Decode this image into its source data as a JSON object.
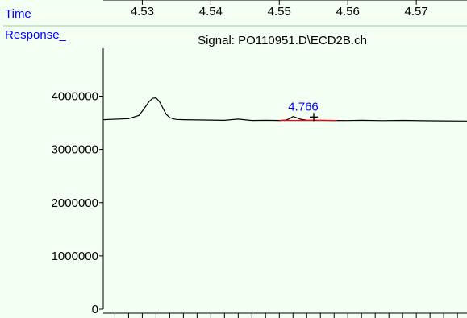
{
  "chart_data": {
    "type": "line",
    "title": "Signal: PO110951.D\\ECD2B.ch",
    "xlabel": "Time",
    "ylabel": "Response_",
    "xlim": [
      4.5243,
      4.5774
    ],
    "ylim": [
      0,
      4900000
    ],
    "x_ticks": [
      4.53,
      4.54,
      4.55,
      4.56,
      4.57
    ],
    "y_ticks": [
      0,
      1000000,
      2000000,
      3000000,
      4000000
    ],
    "x_tick_labels": [
      "4.53",
      "4.54",
      "4.55",
      "4.56",
      "4.57"
    ],
    "y_tick_labels": [
      "0",
      "1000000",
      "2000000",
      "3000000",
      "4000000"
    ],
    "series": [
      {
        "x": [
          4.5243,
          4.528,
          4.5295,
          4.53,
          4.5305,
          4.531,
          4.5315,
          4.532,
          4.5325,
          4.533,
          4.5335,
          4.534,
          4.5345,
          4.535,
          4.536,
          4.538,
          4.54,
          4.542,
          4.544,
          4.546,
          4.548,
          4.55,
          4.551,
          4.5515,
          4.552,
          4.5525,
          4.553,
          4.554,
          4.556,
          4.558,
          4.56,
          4.562,
          4.565,
          4.568,
          4.571,
          4.574,
          4.5774
        ],
        "y": [
          3560000,
          3580000,
          3640000,
          3720000,
          3810000,
          3900000,
          3960000,
          3970000,
          3900000,
          3780000,
          3660000,
          3600000,
          3575000,
          3565000,
          3560000,
          3555000,
          3552000,
          3548000,
          3570000,
          3545000,
          3548000,
          3545000,
          3552000,
          3580000,
          3620000,
          3600000,
          3570000,
          3550000,
          3548000,
          3545000,
          3543000,
          3548000,
          3542000,
          3546000,
          3540000,
          3538000,
          3535000
        ]
      }
    ],
    "peak_label": {
      "text": "4.766",
      "x": 4.5535,
      "y": 3640000
    },
    "baseline": {
      "x": [
        4.55,
        4.5584
      ],
      "y": [
        3545000,
        3545000
      ]
    },
    "colors": {
      "trace": "#000000",
      "baseline": "#ff0000",
      "label": "#0000ff",
      "background": "#f4fff4"
    }
  }
}
